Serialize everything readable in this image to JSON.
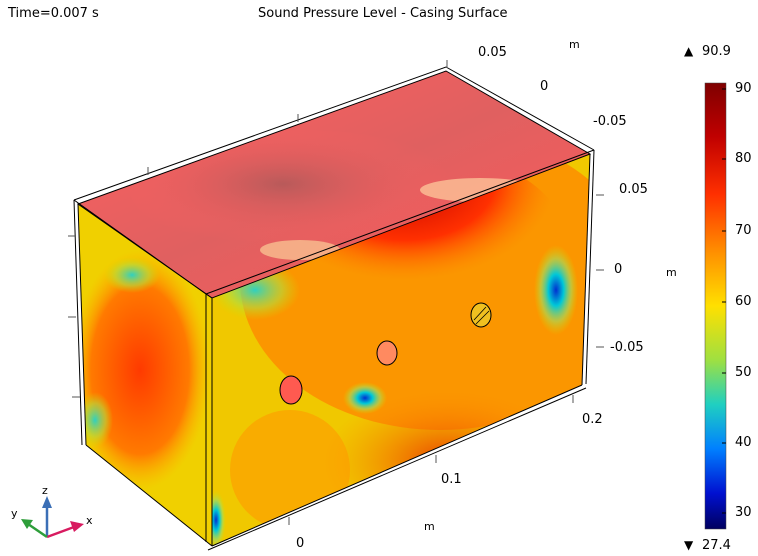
{
  "header": {
    "time_label": "Time=0.007 s",
    "title": "Sound Pressure Level - Casing Surface"
  },
  "axes": {
    "unit": "m",
    "z_ticks": [
      "0.05",
      "0",
      "-0.05"
    ],
    "y_ticks": [
      "0.05",
      "0",
      "-0.05"
    ],
    "x_ticks": [
      "0.2",
      "0.1",
      "0"
    ]
  },
  "colorbar": {
    "max_label": "90.9",
    "min_label": "27.4",
    "max_marker": "▲",
    "min_marker": "▼",
    "ticks": [
      "90",
      "80",
      "70",
      "60",
      "50",
      "40",
      "30"
    ],
    "colormap": [
      "#7f0000",
      "#d40000",
      "#ff5a00",
      "#ffb000",
      "#ffff00",
      "#80ff80",
      "#00e0e0",
      "#0080ff",
      "#0000c0",
      "#00007f"
    ]
  },
  "triad": {
    "x_label": "x",
    "y_label": "y",
    "z_label": "z",
    "x_color": "#d81b60",
    "y_color": "#2e9e3a",
    "z_color": "#3b6fb6"
  }
}
